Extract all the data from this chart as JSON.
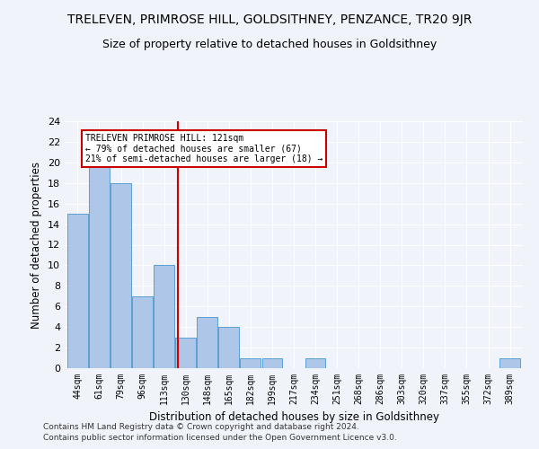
{
  "title": "TRELEVEN, PRIMROSE HILL, GOLDSITHNEY, PENZANCE, TR20 9JR",
  "subtitle": "Size of property relative to detached houses in Goldsithney",
  "xlabel": "Distribution of detached houses by size in Goldsithney",
  "ylabel": "Number of detached properties",
  "footer_line1": "Contains HM Land Registry data © Crown copyright and database right 2024.",
  "footer_line2": "Contains public sector information licensed under the Open Government Licence v3.0.",
  "categories": [
    "44sqm",
    "61sqm",
    "79sqm",
    "96sqm",
    "113sqm",
    "130sqm",
    "148sqm",
    "165sqm",
    "182sqm",
    "199sqm",
    "217sqm",
    "234sqm",
    "251sqm",
    "268sqm",
    "286sqm",
    "303sqm",
    "320sqm",
    "337sqm",
    "355sqm",
    "372sqm",
    "389sqm"
  ],
  "values": [
    15,
    20,
    18,
    7,
    10,
    3,
    5,
    4,
    1,
    1,
    0,
    1,
    0,
    0,
    0,
    0,
    0,
    0,
    0,
    0,
    1
  ],
  "bar_color": "#aec6e8",
  "bar_edge_color": "#5a9fd4",
  "background_color": "#f0f4fa",
  "grid_color": "#ffffff",
  "vline_x": 4.65,
  "vline_color": "#cc0000",
  "annotation_text": "TRELEVEN PRIMROSE HILL: 121sqm\n← 79% of detached houses are smaller (67)\n21% of semi-detached houses are larger (18) →",
  "annotation_box_color": "#ffffff",
  "annotation_box_edge": "#cc0000",
  "ylim": [
    0,
    24
  ],
  "yticks": [
    0,
    2,
    4,
    6,
    8,
    10,
    12,
    14,
    16,
    18,
    20,
    22,
    24
  ],
  "title_fontsize": 10,
  "subtitle_fontsize": 9,
  "xlabel_fontsize": 8.5,
  "ylabel_fontsize": 8.5,
  "ann_fontsize": 7.0
}
